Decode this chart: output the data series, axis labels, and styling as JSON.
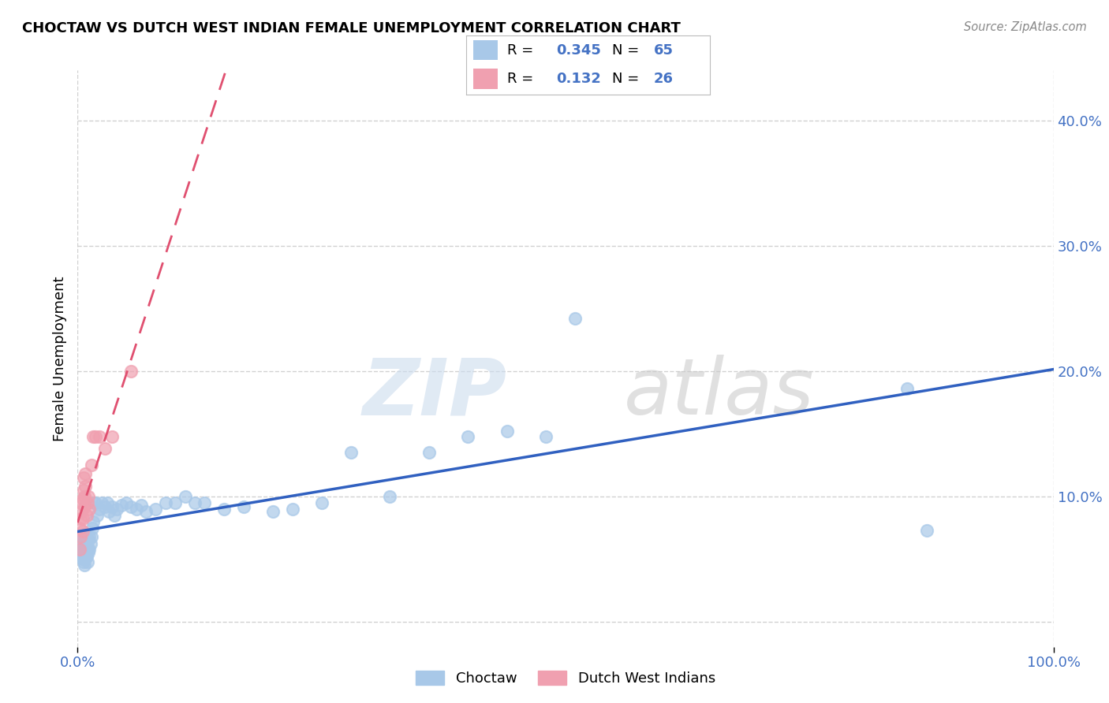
{
  "title": "CHOCTAW VS DUTCH WEST INDIAN FEMALE UNEMPLOYMENT CORRELATION CHART",
  "source": "Source: ZipAtlas.com",
  "ylabel": "Female Unemployment",
  "xlim": [
    0.0,
    1.0
  ],
  "ylim": [
    -0.02,
    0.44
  ],
  "choctaw_R": "0.345",
  "choctaw_N": "65",
  "dutch_R": "0.132",
  "dutch_N": "26",
  "choctaw_color": "#a8c8e8",
  "dutch_color": "#f0a0b0",
  "choctaw_line_color": "#3060c0",
  "dutch_line_color": "#e05070",
  "choctaw_x": [
    0.002,
    0.003,
    0.003,
    0.004,
    0.004,
    0.005,
    0.005,
    0.005,
    0.006,
    0.006,
    0.006,
    0.007,
    0.007,
    0.008,
    0.008,
    0.008,
    0.009,
    0.009,
    0.01,
    0.01,
    0.011,
    0.011,
    0.012,
    0.012,
    0.013,
    0.014,
    0.015,
    0.016,
    0.017,
    0.018,
    0.02,
    0.022,
    0.025,
    0.028,
    0.03,
    0.032,
    0.035,
    0.038,
    0.04,
    0.045,
    0.05,
    0.055,
    0.06,
    0.065,
    0.07,
    0.08,
    0.09,
    0.1,
    0.11,
    0.12,
    0.13,
    0.15,
    0.17,
    0.2,
    0.22,
    0.25,
    0.28,
    0.32,
    0.36,
    0.4,
    0.44,
    0.48,
    0.51,
    0.85,
    0.87
  ],
  "choctaw_y": [
    0.06,
    0.058,
    0.062,
    0.055,
    0.065,
    0.05,
    0.06,
    0.07,
    0.048,
    0.058,
    0.068,
    0.045,
    0.055,
    0.05,
    0.06,
    0.07,
    0.052,
    0.062,
    0.048,
    0.058,
    0.055,
    0.065,
    0.058,
    0.068,
    0.062,
    0.068,
    0.075,
    0.08,
    0.095,
    0.095,
    0.085,
    0.09,
    0.095,
    0.092,
    0.095,
    0.088,
    0.092,
    0.085,
    0.09,
    0.093,
    0.095,
    0.092,
    0.09,
    0.093,
    0.088,
    0.09,
    0.095,
    0.095,
    0.1,
    0.095,
    0.095,
    0.09,
    0.092,
    0.088,
    0.09,
    0.095,
    0.135,
    0.1,
    0.135,
    0.148,
    0.152,
    0.148,
    0.242,
    0.186,
    0.073
  ],
  "dutch_x": [
    0.002,
    0.002,
    0.003,
    0.003,
    0.004,
    0.004,
    0.005,
    0.005,
    0.005,
    0.006,
    0.006,
    0.007,
    0.007,
    0.008,
    0.008,
    0.009,
    0.01,
    0.011,
    0.012,
    0.014,
    0.016,
    0.018,
    0.022,
    0.028,
    0.035,
    0.055
  ],
  "dutch_y": [
    0.058,
    0.075,
    0.068,
    0.082,
    0.088,
    0.095,
    0.072,
    0.082,
    0.098,
    0.105,
    0.115,
    0.092,
    0.1,
    0.108,
    0.118,
    0.085,
    0.095,
    0.1,
    0.09,
    0.125,
    0.148,
    0.148,
    0.148,
    0.138,
    0.148,
    0.2
  ]
}
